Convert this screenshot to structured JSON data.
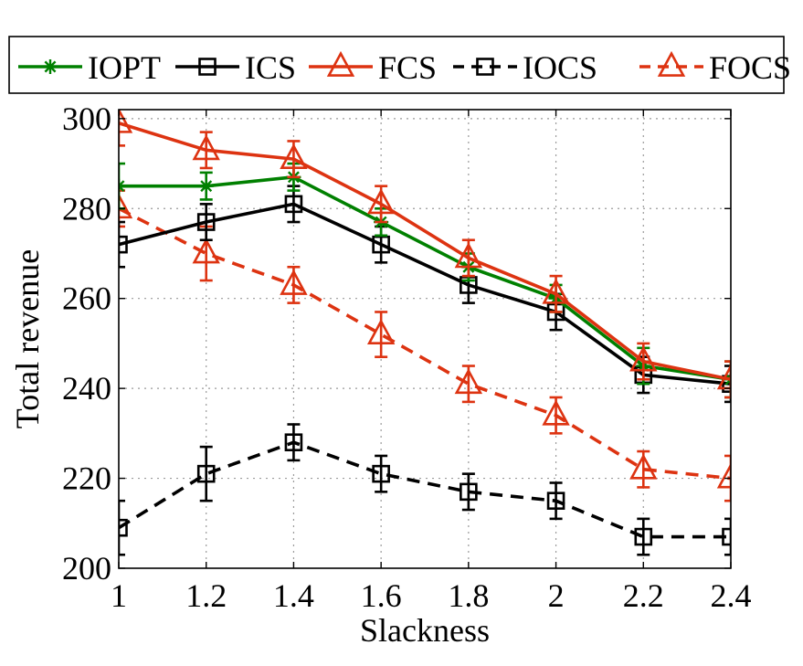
{
  "chart_data": {
    "type": "line",
    "xlabel": "Slackness",
    "ylabel": "Total revenue",
    "xlim": [
      1,
      2.4
    ],
    "ylim": [
      200,
      302
    ],
    "x": [
      1,
      1.2,
      1.4,
      1.6,
      1.8,
      2,
      2.2,
      2.4
    ],
    "x_ticks": [
      1,
      1.2,
      1.4,
      1.6,
      1.8,
      2,
      2.2,
      2.4
    ],
    "x_tick_labels": [
      "1",
      "1.2",
      "1.4",
      "1.6",
      "1.8",
      "2",
      "2.2",
      "2.4"
    ],
    "y_ticks": [
      200,
      220,
      240,
      260,
      280,
      300
    ],
    "y_tick_labels": [
      "200",
      "220",
      "240",
      "260",
      "280",
      "300"
    ],
    "grid": true,
    "legend_position": "top",
    "series": [
      {
        "name": "IOPT",
        "color": "#008000",
        "line_style": "solid",
        "marker": "asterisk",
        "values": [
          285,
          285,
          287,
          277,
          267,
          260,
          245,
          242
        ],
        "error": [
          5,
          3,
          3,
          3,
          3,
          3,
          4,
          4
        ]
      },
      {
        "name": "ICS",
        "color": "#000000",
        "line_style": "solid",
        "marker": "square",
        "values": [
          272,
          277,
          281,
          272,
          263,
          257,
          243,
          241
        ],
        "error": [
          5,
          4,
          4,
          4,
          4,
          4,
          4,
          4
        ]
      },
      {
        "name": "FCS",
        "color": "#dd3311",
        "line_style": "solid",
        "marker": "triangle",
        "values": [
          299,
          293,
          291,
          281,
          269,
          261,
          246,
          242
        ],
        "error": [
          5,
          4,
          4,
          4,
          4,
          4,
          4,
          4
        ]
      },
      {
        "name": "IOCS",
        "color": "#000000",
        "line_style": "dashed",
        "marker": "square",
        "values": [
          209,
          221,
          228,
          221,
          217,
          215,
          207,
          207
        ],
        "error": [
          6,
          6,
          4,
          4,
          4,
          4,
          4,
          4
        ]
      },
      {
        "name": "FOCS",
        "color": "#dd3311",
        "line_style": "dashed",
        "marker": "triangle",
        "values": [
          280,
          270,
          263,
          252,
          241,
          234,
          222,
          220
        ],
        "error": [
          4,
          6,
          4,
          5,
          4,
          4,
          4,
          5
        ]
      }
    ]
  }
}
